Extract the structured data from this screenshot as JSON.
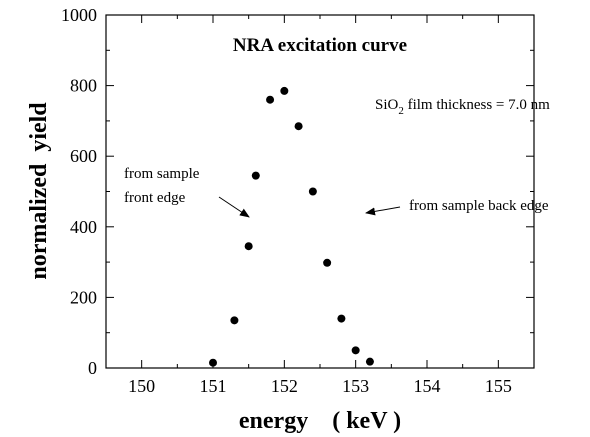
{
  "chart_data": {
    "type": "scatter",
    "title": "NRA excitation curve",
    "xlabel": "energy    ( keV )",
    "ylabel": "normalized  yield",
    "xlim": [
      149.5,
      155.5
    ],
    "ylim": [
      0,
      1000
    ],
    "x_ticks": [
      150,
      151,
      152,
      153,
      154,
      155
    ],
    "y_ticks": [
      0,
      200,
      400,
      600,
      800,
      1000
    ],
    "grid": false,
    "series": [
      {
        "marker_color": "#000000",
        "points": [
          {
            "x": 151.0,
            "y": 15
          },
          {
            "x": 151.3,
            "y": 135
          },
          {
            "x": 151.5,
            "y": 345
          },
          {
            "x": 151.6,
            "y": 545
          },
          {
            "x": 151.8,
            "y": 760
          },
          {
            "x": 152.0,
            "y": 785
          },
          {
            "x": 152.2,
            "y": 685
          },
          {
            "x": 152.4,
            "y": 500
          },
          {
            "x": 152.6,
            "y": 298
          },
          {
            "x": 152.8,
            "y": 140
          },
          {
            "x": 153.0,
            "y": 50
          },
          {
            "x": 153.2,
            "y": 18
          }
        ]
      }
    ],
    "annotations": {
      "thickness_prefix": "SiO",
      "thickness_sub": "2",
      "thickness_suffix": " film thickness = 7.0 nm",
      "front_line1": "from sample",
      "front_line2": "front edge",
      "back": "from sample back edge"
    }
  }
}
